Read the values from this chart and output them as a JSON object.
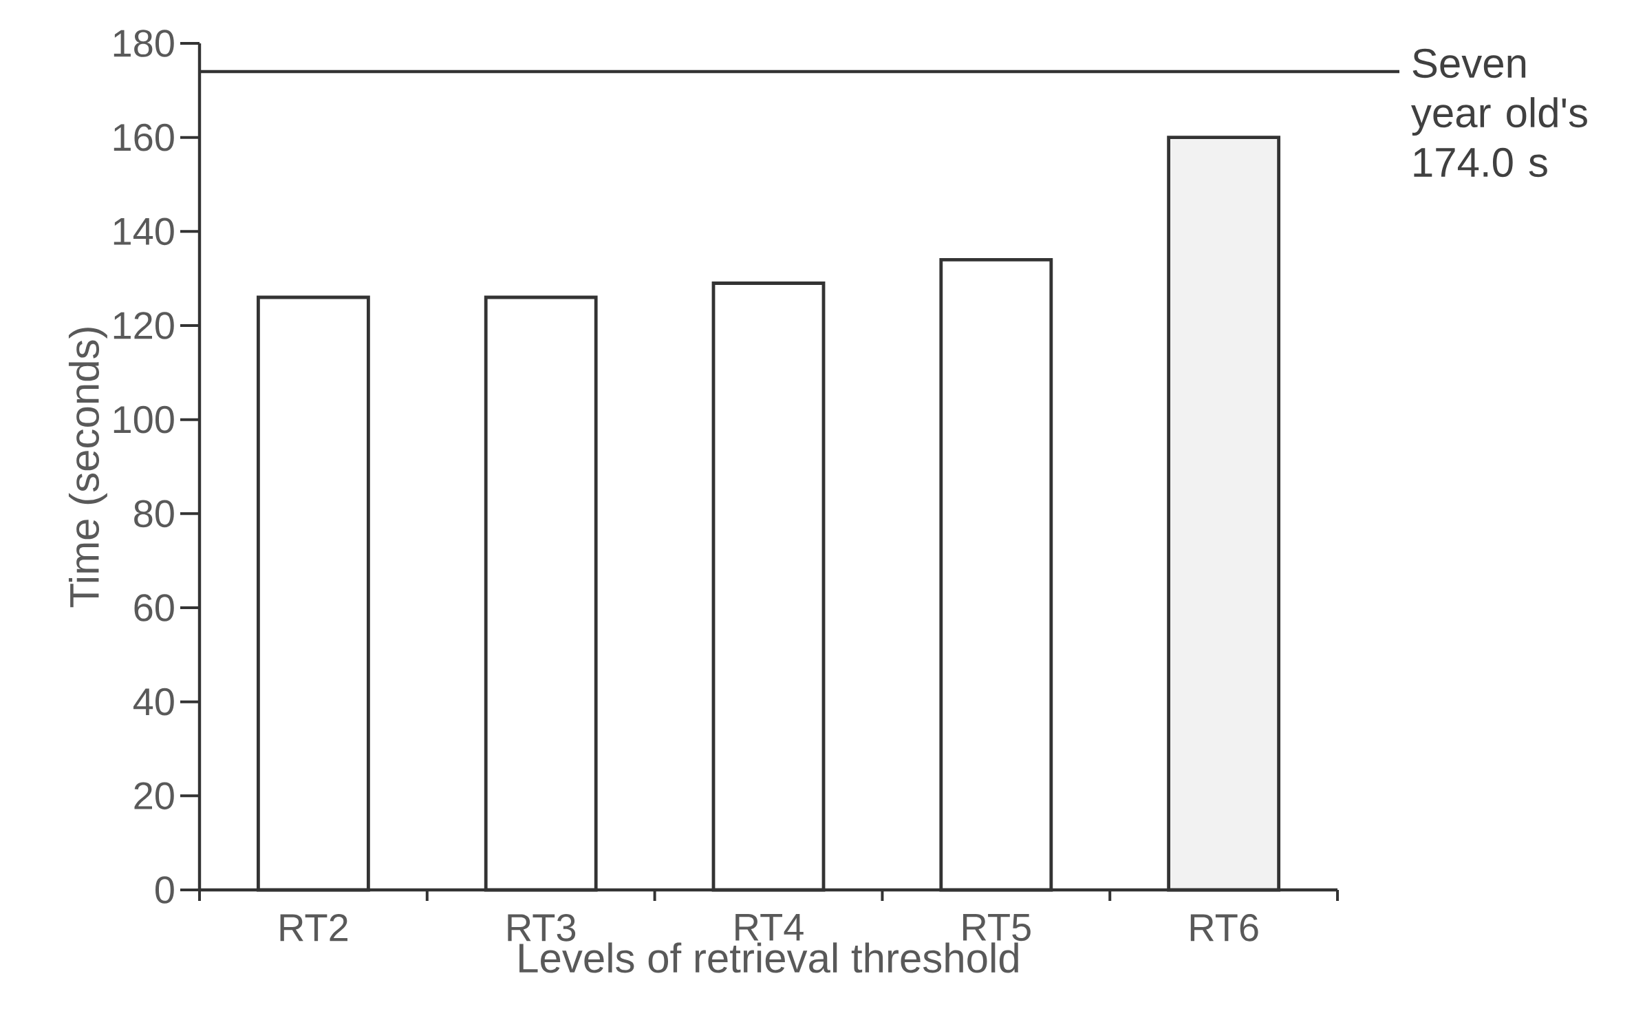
{
  "chart_data": {
    "type": "bar",
    "xlabel": "Levels of retrieval threshold",
    "ylabel": "Time (seconds)",
    "categories": [
      "RT2",
      "RT3",
      "RT4",
      "RT5",
      "RT6"
    ],
    "values": [
      126,
      126,
      129,
      134,
      160
    ],
    "colors": [
      "#ffffff",
      "#ffffff",
      "#ffffff",
      "#ffffff",
      "#f2f2f2"
    ],
    "ylim": [
      0,
      180
    ],
    "yticks": [
      0,
      20,
      40,
      60,
      80,
      100,
      120,
      140,
      160,
      180
    ],
    "ref_lines": [
      {
        "axis": "y",
        "value": 174,
        "label": "Seven year old's 174.0 s",
        "color": "#333333"
      }
    ]
  }
}
